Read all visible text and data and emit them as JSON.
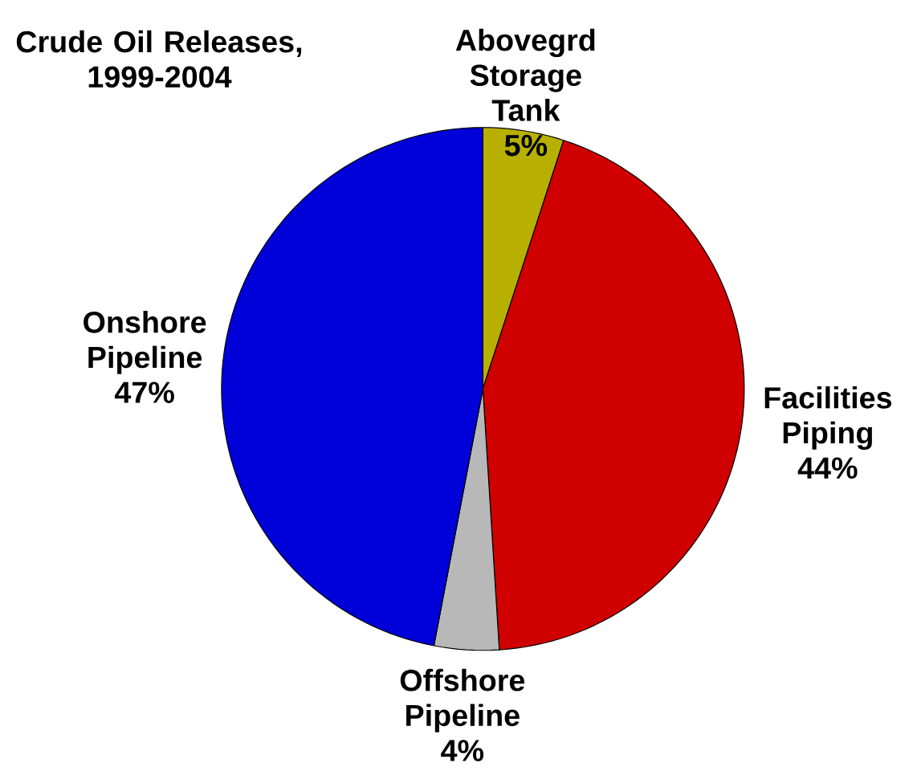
{
  "chart_data": {
    "type": "pie",
    "title": "Crude Oil Releases, 1999-2004",
    "categories": [
      "Abovegrd Storage Tank",
      "Facilities Piping",
      "Offshore Pipeline",
      "Onshore Pipeline"
    ],
    "values": [
      5,
      44,
      4,
      47
    ],
    "value_labels": [
      "5%",
      "44%",
      "4%",
      "47%"
    ],
    "colors": [
      "#b8b000",
      "#d00000",
      "#b8b8b8",
      "#0000d8"
    ]
  }
}
